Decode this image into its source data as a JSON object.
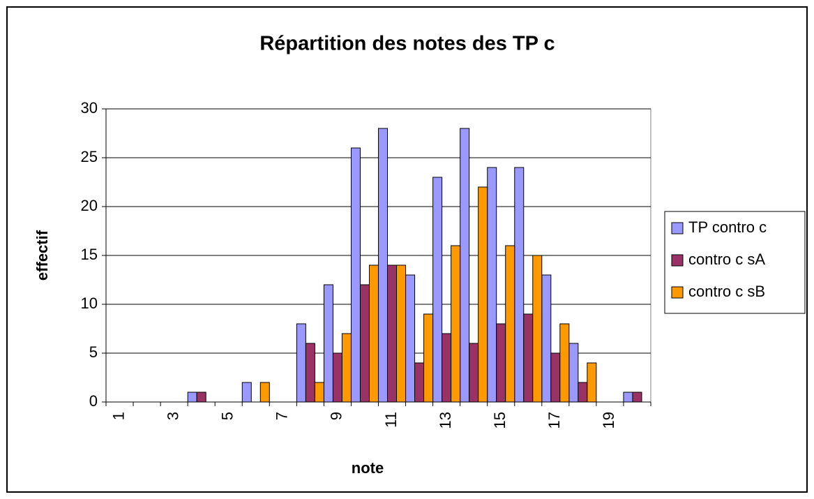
{
  "chart_data": {
    "type": "bar",
    "title": "Répartition des notes des TP c",
    "x_label": "note",
    "y_label": "effectif",
    "categories": [
      1,
      null,
      3,
      null,
      5,
      null,
      7,
      null,
      9,
      null,
      11,
      null,
      13,
      null,
      15,
      null,
      17,
      null,
      19,
      null
    ],
    "series": [
      {
        "name": "TP contro c",
        "color": "#9999ff",
        "values": [
          0,
          0,
          0,
          1,
          0,
          2,
          0,
          8,
          12,
          26,
          28,
          13,
          23,
          28,
          24,
          24,
          13,
          6,
          0,
          1
        ]
      },
      {
        "name": "contro c sA",
        "color": "#993366",
        "values": [
          0,
          0,
          0,
          1,
          0,
          0,
          0,
          6,
          5,
          12,
          14,
          4,
          7,
          6,
          8,
          9,
          5,
          2,
          0,
          1
        ]
      },
      {
        "name": "contro c sB",
        "color": "#ff9900",
        "values": [
          0,
          0,
          0,
          0,
          0,
          2,
          0,
          2,
          7,
          14,
          14,
          9,
          16,
          22,
          16,
          15,
          8,
          4,
          0,
          0
        ]
      }
    ],
    "ylim": [
      0,
      30
    ],
    "yticks": [
      0,
      5,
      10,
      15,
      20,
      25,
      30
    ],
    "grid": true,
    "legend": "right"
  }
}
